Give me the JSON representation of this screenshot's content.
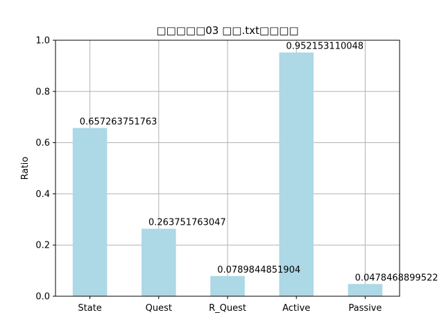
{
  "chart_data": {
    "type": "bar",
    "title": "□□□□□03 □□.txt□□□□",
    "xlabel": "",
    "ylabel": "Ratio",
    "categories": [
      "State",
      "Quest",
      "R_Quest",
      "Active",
      "Passive"
    ],
    "values": [
      0.657263751763,
      0.263751763047,
      0.0789844851904,
      0.952153110048,
      0.0478468899522
    ],
    "data_labels": [
      "0.657263751763",
      "0.263751763047",
      "0.0789844851904",
      "0.952153110048",
      "0.0478468899522"
    ],
    "ylim": [
      0,
      1.0
    ],
    "yticks": [
      "0.0",
      "0.2",
      "0.4",
      "0.6",
      "0.8",
      "1.0"
    ],
    "grid": true,
    "legend": "none",
    "colors": {
      "bar": "#add8e6",
      "grid": "#b0b0b0",
      "axis": "#000000"
    }
  }
}
